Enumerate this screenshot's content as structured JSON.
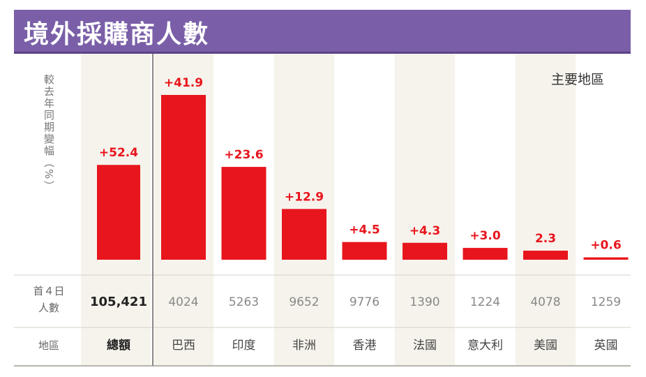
{
  "title": "境外採購商人數",
  "ylabel": "較去年同期變幅（%）",
  "region_note": "主要地區",
  "row_labels": {
    "count": [
      "首４日",
      "人數"
    ],
    "region": "地區"
  },
  "chart_data": {
    "type": "bar",
    "title": "境外採購商人數",
    "ylabel": "較去年同期變幅（%）",
    "total": {
      "category": "總額",
      "value": 52.4,
      "label": "+52.4",
      "count": "105,421"
    },
    "categories": [
      "巴西",
      "印度",
      "非洲",
      "香港",
      "法國",
      "意大利",
      "美國",
      "英國"
    ],
    "values": [
      41.9,
      23.6,
      12.9,
      4.5,
      4.3,
      3.0,
      2.3,
      0.6
    ],
    "value_labels": [
      "+41.9",
      "+23.6",
      "+12.9",
      "+4.5",
      "+4.3",
      "+3.0",
      "2.3",
      "+0.6"
    ],
    "counts": [
      "4024",
      "5263",
      "9652",
      "9776",
      "1390",
      "1224",
      "4078",
      "1259"
    ],
    "grid": false,
    "colors": {
      "bar": "#e8151c",
      "label": "#e8151c",
      "header": "#7a5fa8",
      "band": "#f6f3ec"
    }
  }
}
